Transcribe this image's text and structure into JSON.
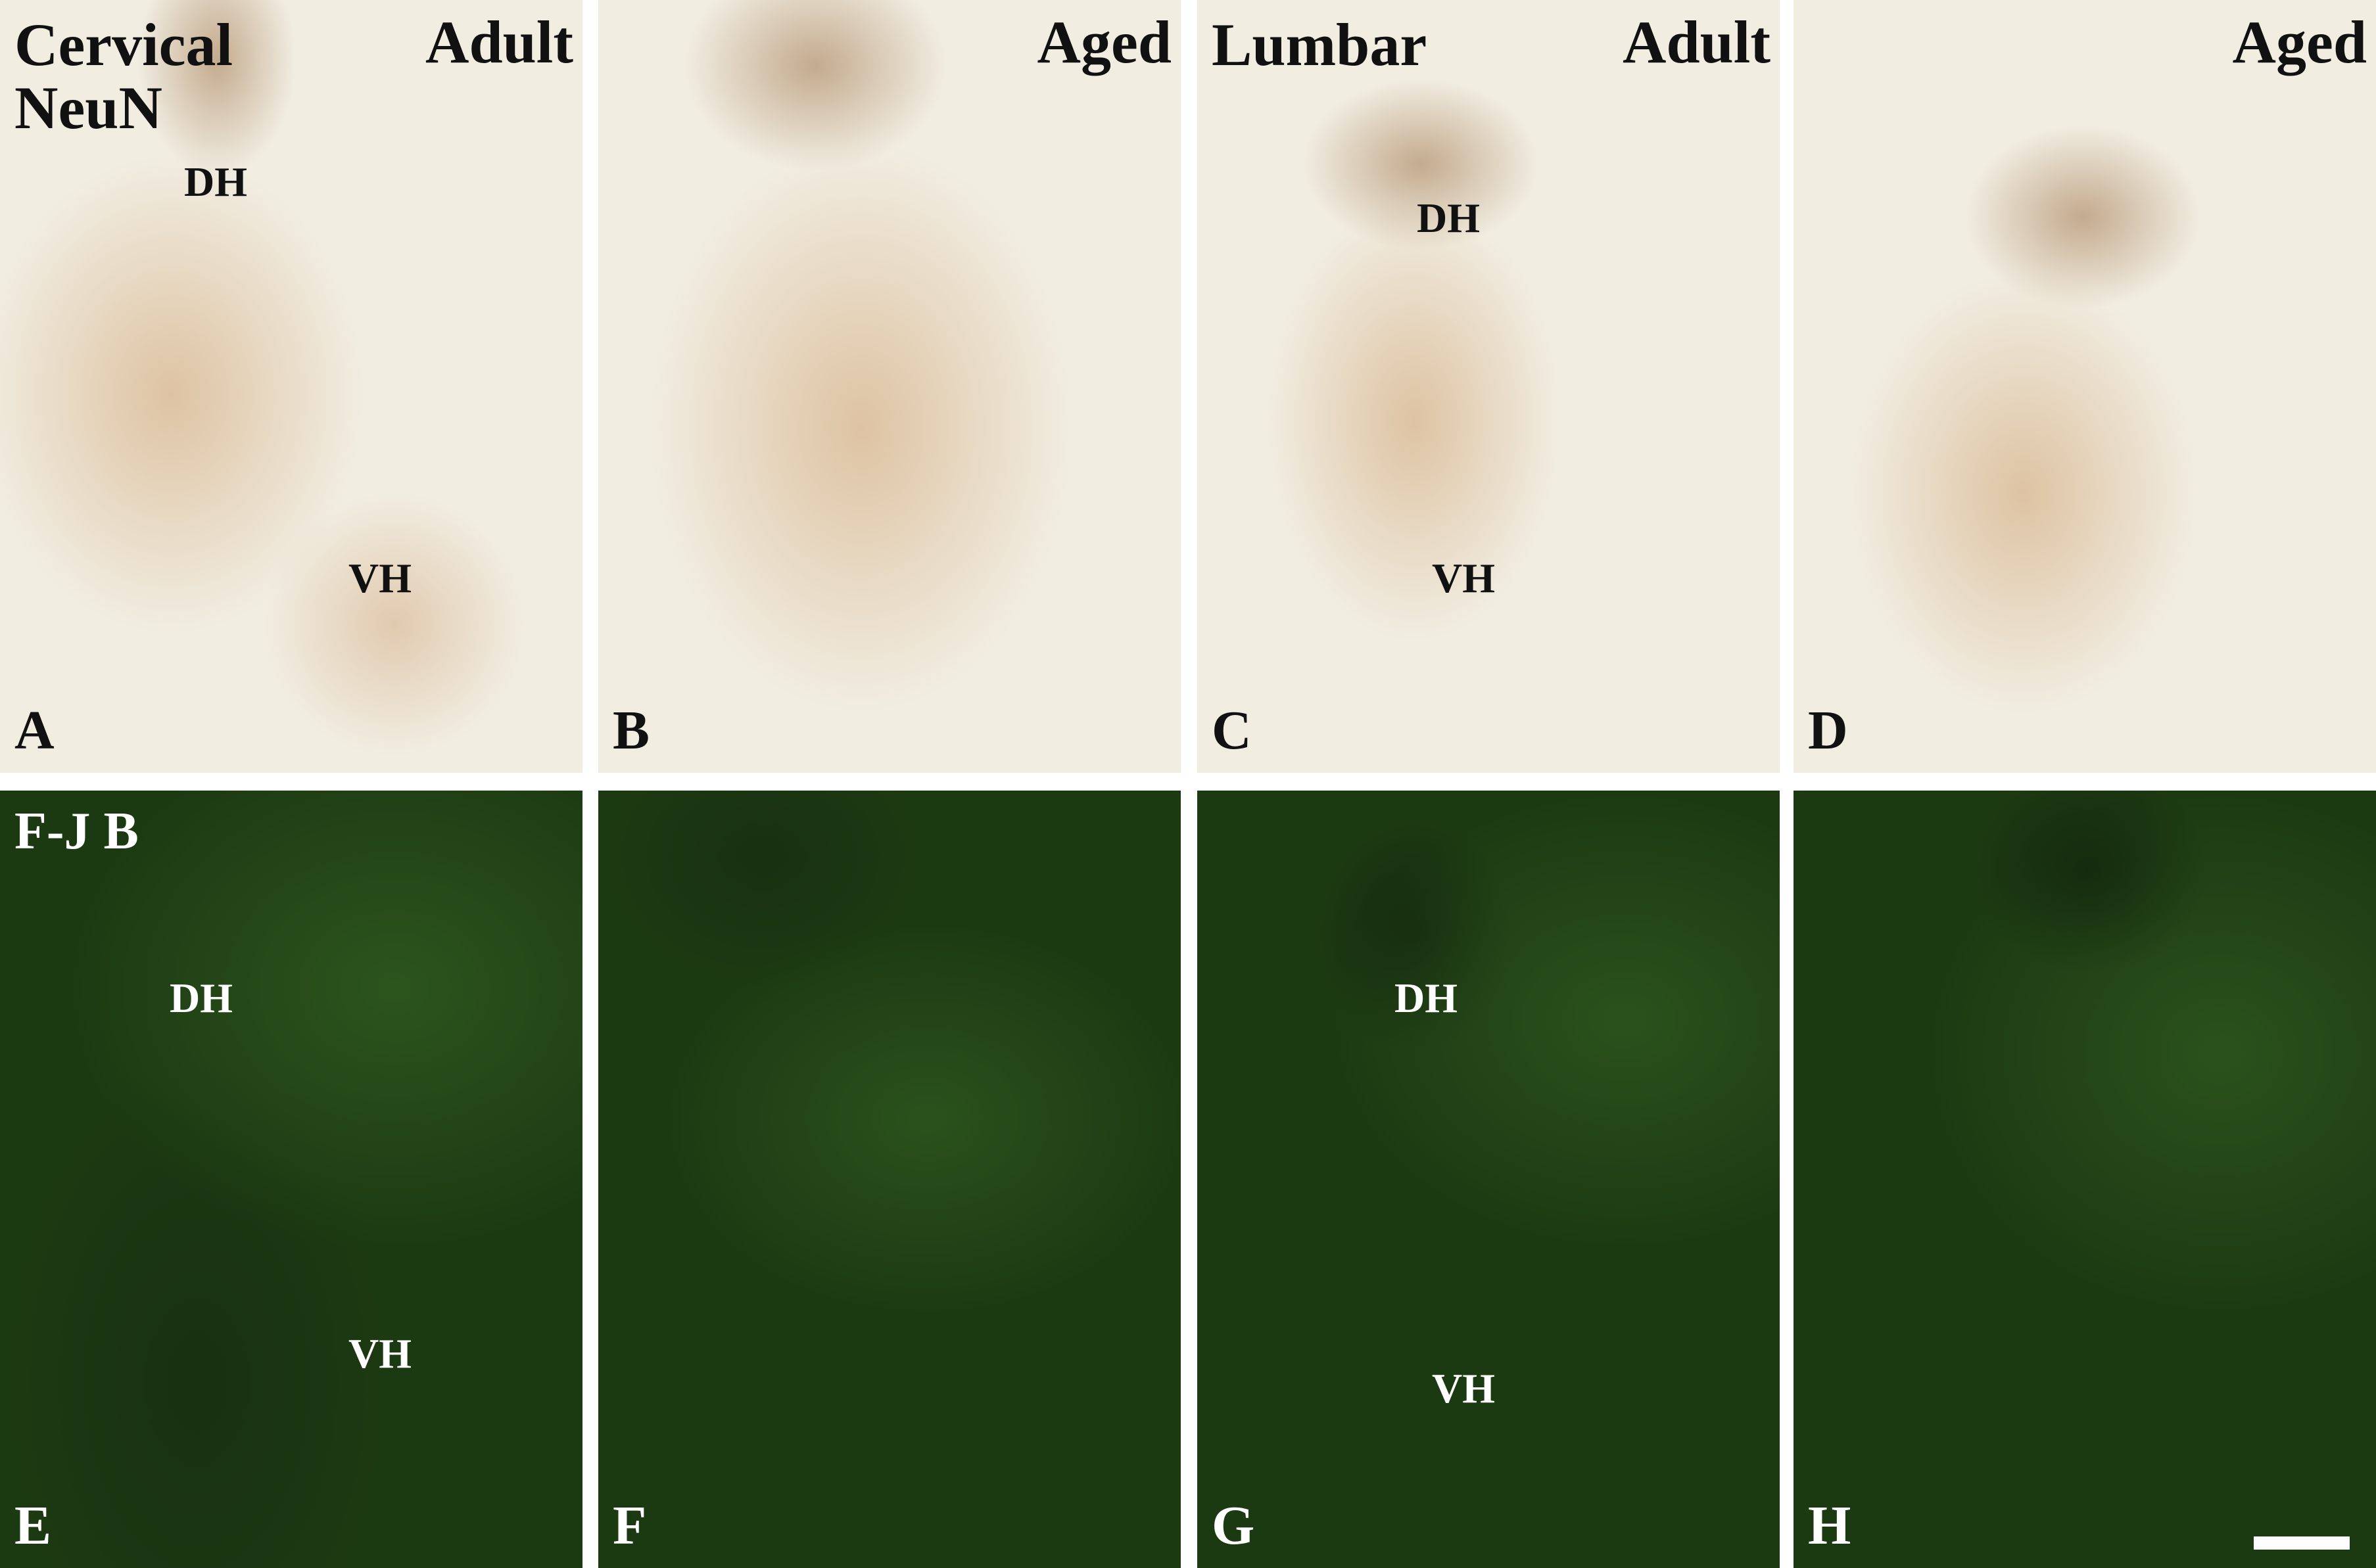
{
  "top_row": [
    {
      "letter": "A",
      "region_title": "Cervical",
      "stain": "NeuN",
      "age": "Adult",
      "dh": "DH",
      "vh": "VH"
    },
    {
      "letter": "B",
      "age": "Aged"
    },
    {
      "letter": "C",
      "region_title": "Lumbar",
      "age": "Adult",
      "dh": "DH",
      "vh": "VH"
    },
    {
      "letter": "D",
      "age": "Aged"
    }
  ],
  "bottom_row": [
    {
      "letter": "E",
      "stain": "F-J B",
      "dh": "DH",
      "vh": "VH"
    },
    {
      "letter": "F"
    },
    {
      "letter": "G",
      "dh": "DH",
      "vh": "VH"
    },
    {
      "letter": "H"
    }
  ],
  "colors": {
    "brightfield_bg": "#f1ede1",
    "neun_stain": "#b5652e",
    "fjb_bg": "#1c3a12"
  },
  "scale_bar": true
}
